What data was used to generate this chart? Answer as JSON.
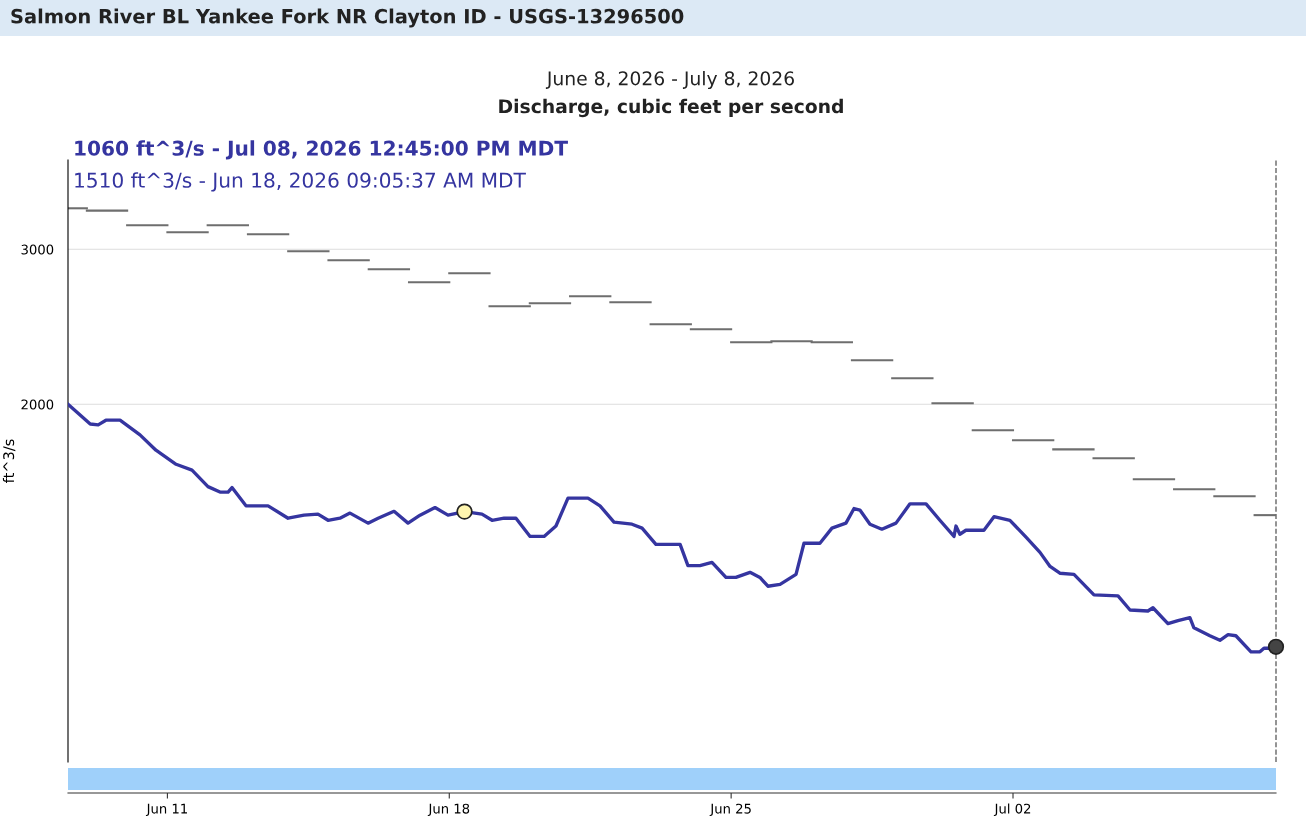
{
  "chart_data": {
    "type": "line",
    "title": "Salmon River BL Yankee Fork NR Clayton ID - USGS-13296500",
    "subtitle": "June 8, 2026 - July 8, 2026",
    "ylabel": "ft^3/s",
    "annotations": [
      "Discharge, cubic feet per second",
      "1060 ft^3/s - Jul 08, 2026 12:45:00 PM MDT",
      "1510 ft^3/s - Jun 18, 2026 09:05:37 AM MDT"
    ],
    "log": true,
    "xlim": [
      "2026-06-08T12:45",
      "2026-07-08T12:45"
    ],
    "xticks": [
      {
        "value": "2026-06-11",
        "label": "Jun 11"
      },
      {
        "value": "2026-06-18",
        "label": "Jun 18"
      },
      {
        "value": "2026-06-25",
        "label": "Jun 25"
      },
      {
        "value": "2026-07-02",
        "label": "Jul 02"
      }
    ],
    "ylim": [
      784,
      3790
    ],
    "yticks": [
      2000,
      3000
    ],
    "grid": "y",
    "ref_lines": [
      {
        "axis": "x",
        "value": "2026-07-08T12:45",
        "color": "#666666",
        "line_style": "dashed"
      }
    ],
    "series": [
      {
        "type": "step",
        "color": "#6e6e6e",
        "x": [
          "2026-06-08T12:45",
          "2026-06-09",
          "2026-06-10",
          "2026-06-11",
          "2026-06-12",
          "2026-06-13",
          "2026-06-14",
          "2026-06-15",
          "2026-06-16",
          "2026-06-17",
          "2026-06-18",
          "2026-06-19",
          "2026-06-20",
          "2026-06-21",
          "2026-06-22",
          "2026-06-23",
          "2026-06-24",
          "2026-06-25",
          "2026-06-26",
          "2026-06-27",
          "2026-06-28",
          "2026-06-29",
          "2026-06-30",
          "2026-07-01",
          "2026-07-02",
          "2026-07-03",
          "2026-07-04",
          "2026-07-05",
          "2026-07-06",
          "2026-07-07",
          "2026-07-08",
          "2026-07-08T12:45"
        ],
        "values": [
          3340,
          3320,
          3195,
          3137,
          3195,
          3120,
          2985,
          2915,
          2847,
          2752,
          2818,
          2585,
          2605,
          2653,
          2612,
          2466,
          2434,
          2352,
          2358,
          2352,
          2244,
          2141,
          2005,
          1868,
          1820,
          1777,
          1736,
          1643,
          1601,
          1572,
          1496,
          1496
        ]
      },
      {
        "color": "#3535a0",
        "x": [
          "2026-06-08T12:45",
          "2026-06-09T02:00",
          "2026-06-09T06:45",
          "2026-06-09T11:20",
          "2026-06-09T19:45",
          "2026-06-10T07:40",
          "2026-06-10T17:10",
          "2026-06-11T05:10",
          "2026-06-11T14:40",
          "2026-06-12T00:10",
          "2026-06-12T07:20",
          "2026-06-12T12:10",
          "2026-06-12T14:30",
          "2026-06-12T22:50",
          "2026-06-13T12:00",
          "2026-06-13T23:55",
          "2026-06-14T09:25",
          "2026-06-14T17:45",
          "2026-06-14T23:45",
          "2026-06-15T06:50",
          "2026-06-15T12:50",
          "2026-06-15T23:35",
          "2026-06-16T05:35",
          "2026-06-16T15:05",
          "2026-06-16T23:25",
          "2026-06-17T06:35",
          "2026-06-17T15:30",
          "2026-06-17T23:15",
          "2026-06-18T09:05",
          "2026-06-18T19:30",
          "2026-06-19T01:30",
          "2026-06-19T08:40",
          "2026-06-19T15:45",
          "2026-06-20T00:10",
          "2026-06-20T08:30",
          "2026-06-20T15:35",
          "2026-06-20T22:45",
          "2026-06-21T10:40",
          "2026-06-21T17:50",
          "2026-06-22T02:10",
          "2026-06-22T12:55",
          "2026-06-22T18:55",
          "2026-06-23T03:10",
          "2026-06-23T17:35",
          "2026-06-23T22:15",
          "2026-06-24T05:25",
          "2026-06-24T12:35",
          "2026-06-24T20:55",
          "2026-06-25T02:50",
          "2026-06-25T11:15",
          "2026-06-25T17:10",
          "2026-06-25T21:55",
          "2026-06-26T05:10",
          "2026-06-26T14:40",
          "2026-06-26T19:25",
          "2026-06-27T04:55",
          "2026-06-27T12:05",
          "2026-06-27T20:25",
          "2026-06-28T01:15",
          "2026-06-28T04:45",
          "2026-06-28T10:45",
          "2026-06-28T17:50",
          "2026-06-29T02:15",
          "2026-06-29T10:35",
          "2026-06-29T20:10",
          "2026-06-30T04:25",
          "2026-06-30T12:50",
          "2026-06-30T14:00",
          "2026-06-30T16:20",
          "2026-06-30T19:55",
          "2026-07-01T06:40",
          "2026-07-01T12:40",
          "2026-07-01T22:10",
          "2026-07-02T07:45",
          "2026-07-02T16:05",
          "2026-07-02T22:05",
          "2026-07-03T03:55",
          "2026-07-03T12:20",
          "2026-07-04T00:15",
          "2026-07-04T14:35",
          "2026-07-04T21:45",
          "2026-07-05T08:25",
          "2026-07-05T11:25",
          "2026-07-05T20:20",
          "2026-07-06T02:20",
          "2026-07-06T09:25",
          "2026-07-06T11:50",
          "2026-07-06T21:20",
          "2026-07-07T03:20",
          "2026-07-07T08:10",
          "2026-07-07T12:50",
          "2026-07-07T21:50",
          "2026-07-08T03:10",
          "2026-07-08T05:35",
          "2026-07-08T10:20",
          "2026-07-08T12:45"
        ],
        "values": [
          2000,
          1899,
          1895,
          1918,
          1918,
          1846,
          1773,
          1709,
          1683,
          1612,
          1589,
          1589,
          1608,
          1533,
          1533,
          1484,
          1496,
          1500,
          1476,
          1484,
          1504,
          1465,
          1484,
          1511,
          1465,
          1496,
          1526,
          1496,
          1510,
          1500,
          1476,
          1484,
          1484,
          1415,
          1415,
          1454,
          1564,
          1564,
          1533,
          1469,
          1461,
          1446,
          1386,
          1386,
          1311,
          1311,
          1322,
          1271,
          1271,
          1288,
          1271,
          1242,
          1248,
          1281,
          1390,
          1390,
          1446,
          1465,
          1522,
          1516,
          1461,
          1442,
          1465,
          1541,
          1541,
          1476,
          1415,
          1454,
          1423,
          1438,
          1438,
          1490,
          1476,
          1412,
          1357,
          1308,
          1285,
          1281,
          1214,
          1211,
          1167,
          1164,
          1174,
          1126,
          1135,
          1144,
          1114,
          1091,
          1078,
          1094,
          1091,
          1046,
          1046,
          1056,
          1056,
          1060
        ]
      },
      {
        "type": "scatter",
        "color": "#fff6b0",
        "marker": "circle",
        "x": [
          "2026-06-18T09:05"
        ],
        "values": [
          1510
        ]
      },
      {
        "type": "scatter",
        "color": "#444444",
        "marker": "circle",
        "x": [
          "2026-07-08T12:45"
        ],
        "values": [
          1060
        ]
      }
    ]
  }
}
